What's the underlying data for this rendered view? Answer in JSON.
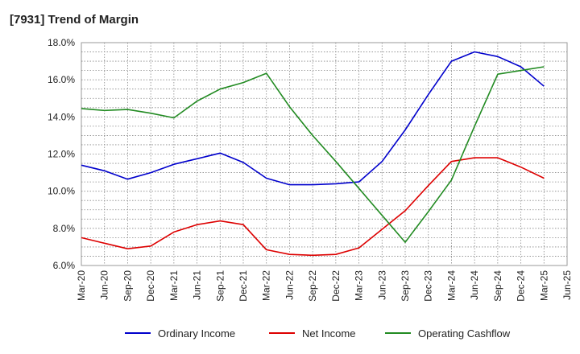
{
  "chart_data": {
    "type": "line",
    "title": "[7931]  Trend of Margin",
    "xlabel": "",
    "ylabel": "",
    "ylim": [
      6.0,
      18.0
    ],
    "yticks": [
      "6.0%",
      "8.0%",
      "10.0%",
      "12.0%",
      "14.0%",
      "16.0%",
      "18.0%"
    ],
    "ytick_values": [
      6,
      8,
      10,
      12,
      14,
      16,
      18
    ],
    "categories": [
      "Mar-20",
      "Jun-20",
      "Sep-20",
      "Dec-20",
      "Mar-21",
      "Jun-21",
      "Sep-21",
      "Dec-21",
      "Mar-22",
      "Jun-22",
      "Sep-22",
      "Dec-22",
      "Mar-23",
      "Jun-23",
      "Sep-23",
      "Dec-23",
      "Mar-24",
      "Jun-24",
      "Sep-24",
      "Dec-24",
      "Mar-25",
      "Jun-25"
    ],
    "grid": true,
    "legend_position": "bottom",
    "series": [
      {
        "name": "Ordinary Income",
        "color": "#0000cc",
        "values": [
          11.4,
          11.1,
          10.65,
          11.0,
          11.45,
          11.75,
          12.05,
          11.55,
          10.7,
          10.35,
          10.35,
          10.4,
          10.5,
          11.6,
          13.3,
          15.2,
          17.0,
          17.5,
          17.25,
          16.7,
          15.65,
          null
        ]
      },
      {
        "name": "Net Income",
        "color": "#dd0000",
        "values": [
          7.5,
          7.2,
          6.9,
          7.05,
          7.8,
          8.2,
          8.4,
          8.2,
          6.85,
          6.6,
          6.55,
          6.6,
          6.95,
          7.95,
          8.95,
          10.3,
          11.6,
          11.8,
          11.8,
          11.3,
          10.7,
          null
        ]
      },
      {
        "name": "Operating Cashflow",
        "color": "#228b22",
        "values": [
          14.45,
          14.35,
          14.4,
          14.2,
          13.95,
          14.85,
          15.5,
          15.85,
          16.35,
          14.55,
          13.0,
          11.6,
          10.15,
          8.7,
          7.25,
          8.9,
          10.6,
          13.5,
          16.3,
          16.5,
          16.7,
          null
        ]
      }
    ]
  }
}
